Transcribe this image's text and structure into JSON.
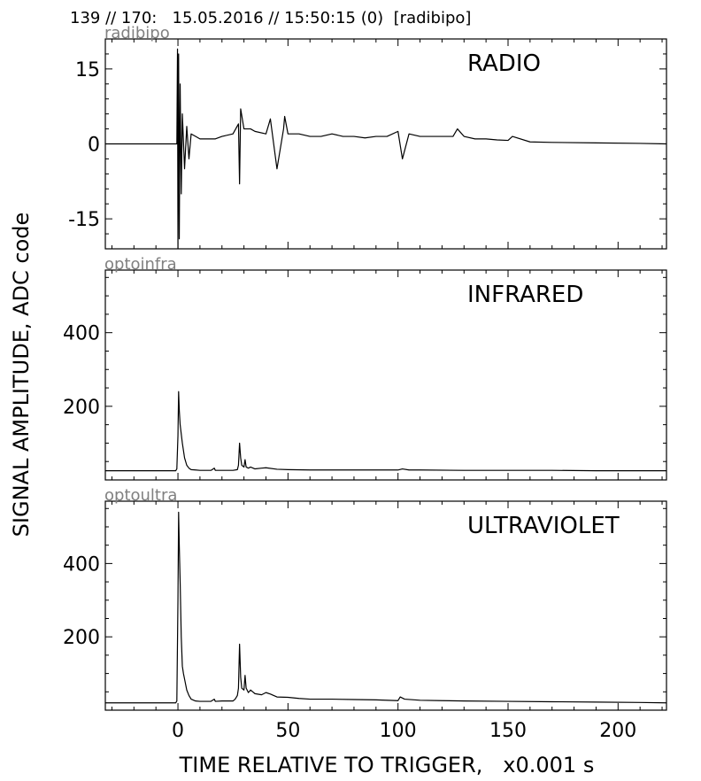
{
  "header": {
    "text": "139 // 170:   15.05.2016 // 15:50:15 (0)  [radibipo]"
  },
  "ylabel": "SIGNAL AMPLITUDE,  ADC code",
  "xlabel": "TIME RELATIVE TO TRIGGER,   x0.001 s",
  "chart_data": [
    {
      "type": "line",
      "channel_label": "radibipo",
      "title": "RADIO",
      "xlim": [
        -33,
        222
      ],
      "ylim": [
        -21,
        21
      ],
      "yticks": [
        15,
        0,
        -15
      ],
      "ytick_labels": [
        "15",
        "0",
        "-15"
      ],
      "baseline": 0,
      "x": [
        -33,
        -0.5,
        -0.2,
        0,
        0.3,
        0.6,
        1,
        1.5,
        2,
        3,
        4,
        5,
        6,
        8,
        10,
        12,
        15,
        17,
        20,
        25,
        27.5,
        28,
        28.5,
        30,
        33,
        35,
        40,
        42,
        45,
        48,
        48.5,
        50,
        55,
        60,
        65,
        70,
        75,
        80,
        85,
        90,
        95,
        100,
        102,
        105,
        110,
        115,
        120,
        125,
        127,
        130,
        135,
        140,
        145,
        150,
        152,
        160,
        170,
        190,
        210,
        222
      ],
      "y": [
        0,
        0,
        19,
        -21,
        18,
        -19,
        12,
        -10,
        6,
        -5,
        3.5,
        -3,
        2,
        1.5,
        1,
        1,
        1,
        1,
        1.5,
        2,
        4,
        -8,
        7,
        3,
        3,
        2.5,
        2,
        5,
        -5,
        3,
        5.5,
        2,
        2,
        1.5,
        1.5,
        2,
        1.5,
        1.5,
        1.2,
        1.5,
        1.5,
        2.5,
        -3,
        2,
        1.5,
        1.5,
        1.5,
        1.5,
        3,
        1.5,
        1,
        1,
        0.8,
        0.7,
        1.5,
        0.4,
        0.3,
        0.2,
        0.1,
        0
      ]
    },
    {
      "type": "line",
      "channel_label": "optoinfra",
      "title": "INFRARED",
      "xlim": [
        -33,
        222
      ],
      "ylim": [
        0,
        570
      ],
      "yticks": [
        400,
        200
      ],
      "ytick_labels": [
        "400",
        "200"
      ],
      "x": [
        -33,
        -1,
        -0.5,
        0,
        0.3,
        0.6,
        1,
        2,
        3,
        4,
        5,
        6,
        8,
        10,
        15,
        16.5,
        17,
        17.5,
        20,
        25,
        27,
        27.5,
        28,
        28.5,
        29,
        30,
        30.5,
        31,
        32,
        33,
        35,
        38,
        40,
        45,
        50,
        60,
        80,
        100,
        102,
        105,
        110,
        130,
        150,
        170,
        190,
        210,
        222
      ],
      "y": [
        25,
        25,
        30,
        120,
        240,
        190,
        150,
        100,
        60,
        40,
        32,
        28,
        27,
        26,
        26,
        32,
        26,
        26,
        26,
        26,
        28,
        40,
        100,
        60,
        40,
        35,
        55,
        35,
        32,
        35,
        30,
        32,
        33,
        29,
        28,
        27,
        27,
        27,
        30,
        27,
        27,
        26,
        26,
        26,
        25,
        25,
        25
      ]
    },
    {
      "type": "line",
      "channel_label": "optoultra",
      "title": "ULTRAVIOLET",
      "xlim": [
        -33,
        222
      ],
      "ylim": [
        0,
        570
      ],
      "yticks": [
        400,
        200
      ],
      "ytick_labels": [
        "400",
        "200"
      ],
      "x": [
        -33,
        -1,
        -0.5,
        0,
        0.3,
        0.6,
        1,
        1.5,
        2,
        2.5,
        3,
        4,
        5,
        6,
        8,
        10,
        15,
        16.5,
        17,
        20,
        25,
        26,
        27,
        27.5,
        28,
        28.5,
        29,
        30,
        30.5,
        31,
        32,
        33,
        34,
        35,
        38,
        40,
        42,
        45,
        50,
        55,
        60,
        70,
        80,
        90,
        100,
        101,
        103,
        110,
        120,
        130,
        150,
        170,
        190,
        210,
        222
      ],
      "y": [
        20,
        20,
        25,
        300,
        540,
        450,
        350,
        200,
        120,
        100,
        85,
        55,
        40,
        30,
        25,
        24,
        24,
        30,
        24,
        25,
        25,
        30,
        40,
        60,
        180,
        90,
        60,
        55,
        95,
        60,
        48,
        55,
        50,
        45,
        42,
        48,
        44,
        36,
        35,
        32,
        30,
        30,
        29,
        28,
        26,
        36,
        30,
        27,
        26,
        25,
        24,
        23,
        22,
        21,
        20
      ]
    }
  ],
  "xticks": [
    0,
    50,
    100,
    150,
    200
  ],
  "xtick_labels": [
    "0",
    "50",
    "100",
    "150",
    "200"
  ]
}
